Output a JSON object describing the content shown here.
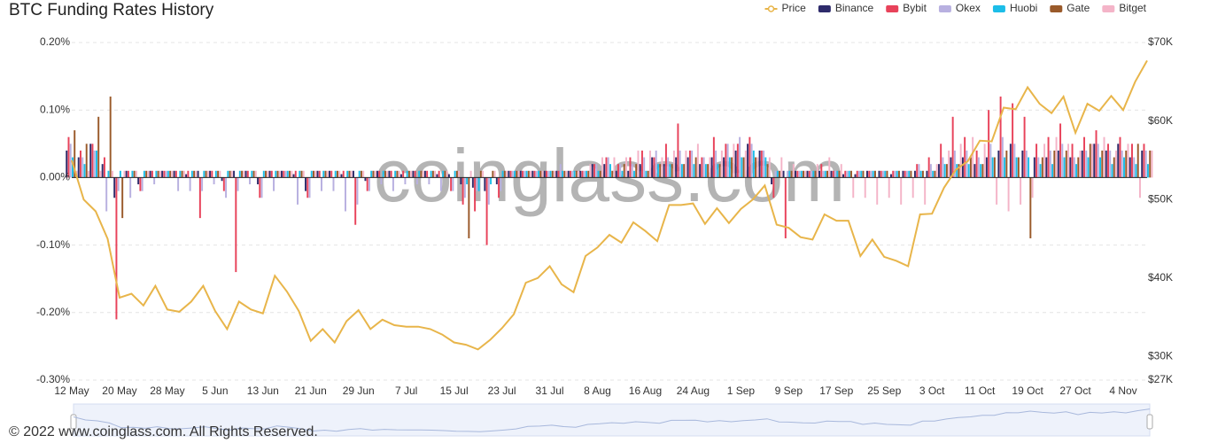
{
  "chart_data": {
    "type": "bar",
    "title": "BTC Funding Rates History",
    "watermark": "coinglass.com",
    "footer": "© 2022 www.coinglass.com. All Rights Reserved.",
    "grid": true,
    "legend": "top-right",
    "categories": [
      "12 May",
      null,
      null,
      null,
      "20 May",
      null,
      null,
      null,
      "28 May",
      null,
      null,
      null,
      "5 Jun",
      null,
      null,
      null,
      "13 Jun",
      null,
      null,
      null,
      "21 Jun",
      null,
      null,
      null,
      "29 Jun",
      null,
      null,
      null,
      "7 Jul",
      null,
      null,
      null,
      "15 Jul",
      null,
      null,
      null,
      "23 Jul",
      null,
      null,
      null,
      "31 Jul",
      null,
      null,
      null,
      "8 Aug",
      null,
      null,
      null,
      "16 Aug",
      null,
      null,
      null,
      "24 Aug",
      null,
      null,
      null,
      "1 Sep",
      null,
      null,
      null,
      "9 Sep",
      null,
      null,
      null,
      "17 Sep",
      null,
      null,
      null,
      "25 Sep",
      null,
      null,
      null,
      "3 Oct",
      null,
      null,
      null,
      "11 Oct",
      null,
      null,
      null,
      "19 Oct",
      null,
      null,
      null,
      "27 Oct",
      null,
      null,
      null,
      "4 Nov",
      null,
      null
    ],
    "ylim": [
      -0.3,
      0.2
    ],
    "yticks": [
      {
        "value": -0.3,
        "label": "-0.30%"
      },
      {
        "value": -0.2,
        "label": "-0.20%"
      },
      {
        "value": -0.1,
        "label": "-0.10%"
      },
      {
        "value": 0,
        "label": "0.00%"
      },
      {
        "value": 0.1,
        "label": "0.10%"
      },
      {
        "value": 0.2,
        "label": "0.20%"
      }
    ],
    "y2lim": [
      27000,
      70000
    ],
    "y2ticks": [
      {
        "value": 27000,
        "label": "$27K"
      },
      {
        "value": 30000,
        "label": "$30K"
      },
      {
        "value": 40000,
        "label": "$40K"
      },
      {
        "value": 50000,
        "label": "$50K"
      },
      {
        "value": 60000,
        "label": "$60K"
      },
      {
        "value": 70000,
        "label": "$70K"
      }
    ],
    "series": [
      {
        "name": "Price",
        "type": "line",
        "axis": "y2",
        "color": "#e8b54a",
        "values": [
          55000,
          50000,
          48500,
          45000,
          37500,
          38000,
          36500,
          39000,
          36000,
          35700,
          37000,
          39000,
          35800,
          33500,
          37000,
          36000,
          35500,
          40300,
          38300,
          35800,
          32000,
          33500,
          31800,
          34500,
          35900,
          33500,
          34700,
          34000,
          33800,
          33800,
          33500,
          32800,
          31800,
          31500,
          30900,
          32100,
          33600,
          35400,
          39400,
          40000,
          41500,
          39200,
          38200,
          42800,
          43900,
          45500,
          44500,
          47100,
          46000,
          44700,
          49300,
          49300,
          49500,
          46900,
          48900,
          47000,
          48800,
          50000,
          51800,
          46800,
          46400,
          45200,
          44900,
          48100,
          47300,
          47300,
          42800,
          44900,
          42700,
          42200,
          41500,
          48100,
          48200,
          51500,
          53800,
          54900,
          57500,
          57400,
          61700,
          61500,
          64300,
          62200,
          61000,
          63100,
          58500,
          62200,
          61300,
          63200,
          61400,
          65000,
          67700
        ]
      },
      {
        "name": "Binance",
        "type": "bar",
        "color": "#2e2b6b",
        "values": [
          0.04,
          0.03,
          0.05,
          0.02,
          -0.03,
          0.01,
          -0.01,
          0.01,
          0.01,
          0.01,
          0.005,
          0.01,
          0.01,
          -0.005,
          0.01,
          0.01,
          -0.01,
          0.01,
          0.01,
          0.005,
          -0.02,
          0.01,
          0.01,
          0.005,
          0.01,
          -0.005,
          0.01,
          0.01,
          0.005,
          0.01,
          0.01,
          0.005,
          0.005,
          -0.01,
          -0.015,
          -0.02,
          -0.01,
          0.01,
          0.01,
          0.01,
          0.01,
          0.01,
          0.01,
          0.01,
          0.02,
          0.02,
          0.01,
          0.01,
          0.02,
          0.03,
          0.02,
          0.03,
          0.03,
          0.02,
          0.03,
          0.03,
          0.04,
          0.05,
          0.04,
          -0.01,
          0.01,
          0.01,
          0.01,
          0.01,
          0.01,
          0.005,
          0.005,
          0.01,
          0.01,
          0.005,
          0.01,
          0.01,
          0.01,
          0.02,
          0.03,
          0.03,
          0.02,
          0.03,
          0.04,
          0.05,
          0.04,
          0.03,
          0.03,
          0.04,
          0.03,
          0.04,
          0.05,
          0.04,
          0.05,
          0.03,
          0.04
        ]
      },
      {
        "name": "Bybit",
        "type": "bar",
        "color": "#e8425a",
        "values": [
          0.06,
          0.04,
          0.05,
          0.03,
          -0.21,
          0.01,
          -0.02,
          0.01,
          0.01,
          0.01,
          0.01,
          -0.06,
          0.01,
          -0.02,
          -0.14,
          0.01,
          -0.03,
          0.01,
          0.01,
          0.01,
          -0.03,
          0.01,
          0.01,
          0.01,
          -0.07,
          -0.02,
          0.01,
          0.01,
          0.01,
          0.01,
          0.01,
          0.01,
          -0.02,
          -0.04,
          -0.05,
          -0.1,
          -0.03,
          0.01,
          0.01,
          0.01,
          0.01,
          0.01,
          0.01,
          0.01,
          0.02,
          0.03,
          0.02,
          0.03,
          0.04,
          0.03,
          0.05,
          0.08,
          0.04,
          0.03,
          0.06,
          0.05,
          0.05,
          0.06,
          0.04,
          -0.03,
          -0.09,
          0.01,
          0.01,
          0.02,
          0.01,
          0.01,
          0.01,
          0.01,
          0.01,
          0.01,
          0.01,
          0.02,
          0.03,
          0.05,
          0.09,
          0.06,
          0.04,
          0.1,
          0.12,
          0.11,
          0.09,
          0.05,
          0.06,
          0.08,
          0.05,
          0.06,
          0.07,
          0.05,
          0.06,
          0.05,
          0.05
        ]
      },
      {
        "name": "Okex",
        "type": "bar",
        "color": "#b8b0e0",
        "values": [
          0.05,
          0.03,
          0.04,
          -0.05,
          -0.02,
          -0.03,
          -0.02,
          -0.01,
          0.01,
          -0.02,
          -0.02,
          -0.02,
          -0.01,
          -0.03,
          -0.02,
          -0.01,
          -0.03,
          -0.02,
          0.01,
          -0.04,
          -0.03,
          -0.02,
          -0.02,
          -0.05,
          -0.04,
          -0.02,
          -0.01,
          -0.02,
          -0.01,
          -0.01,
          -0.01,
          -0.02,
          -0.02,
          -0.03,
          -0.02,
          -0.04,
          -0.02,
          0.01,
          0.01,
          0.01,
          0.01,
          0.02,
          0.01,
          0.01,
          0.02,
          0.03,
          0.02,
          0.02,
          0.03,
          0.04,
          0.03,
          0.04,
          0.04,
          0.03,
          0.04,
          0.05,
          0.06,
          0.05,
          0.04,
          0.01,
          0.01,
          0.01,
          0.01,
          0.01,
          0.01,
          0.01,
          0.01,
          0.01,
          0.01,
          0.01,
          0.01,
          0.02,
          0.02,
          0.03,
          0.04,
          0.04,
          0.03,
          0.05,
          0.06,
          0.05,
          0.04,
          0.03,
          0.04,
          0.05,
          0.03,
          0.04,
          0.05,
          0.04,
          0.04,
          0.03,
          0.04
        ]
      },
      {
        "name": "Huobi",
        "type": "bar",
        "color": "#1cbde8",
        "values": [
          0.03,
          0.02,
          0.04,
          0.01,
          0.01,
          0.01,
          0.01,
          0.01,
          0.01,
          0.01,
          0.01,
          0.01,
          0.01,
          0.01,
          0.01,
          0.01,
          0.01,
          0.01,
          0.01,
          0.01,
          0.01,
          0.01,
          0.01,
          0.01,
          0.01,
          0.01,
          0.01,
          0.01,
          0.01,
          0.01,
          0.01,
          0.01,
          0.01,
          -0.01,
          -0.02,
          -0.01,
          0.01,
          0.01,
          0.01,
          0.01,
          0.01,
          0.01,
          0.01,
          0.01,
          0.01,
          0.02,
          0.01,
          0.01,
          0.01,
          0.02,
          0.02,
          0.02,
          0.02,
          0.02,
          0.02,
          0.03,
          0.03,
          0.04,
          0.03,
          0.01,
          0.01,
          0.01,
          0.01,
          0.01,
          0.01,
          0.01,
          0.01,
          0.01,
          0.01,
          0.01,
          0.01,
          0.01,
          0.01,
          0.02,
          0.02,
          0.02,
          0.02,
          0.03,
          0.03,
          0.03,
          0.03,
          0.02,
          0.02,
          0.03,
          0.02,
          0.03,
          0.03,
          0.02,
          0.03,
          0.02,
          0.02
        ]
      },
      {
        "name": "Gate",
        "type": "bar",
        "color": "#9a5a2a",
        "values": [
          0.07,
          0.05,
          0.09,
          0.12,
          -0.06,
          0.01,
          0.01,
          0.01,
          0.01,
          0.01,
          0.01,
          0.01,
          0.01,
          0.01,
          0.01,
          0.01,
          0.01,
          0.01,
          0.01,
          0.01,
          0.01,
          0.01,
          0.01,
          0.01,
          0.01,
          0.01,
          0.01,
          0.01,
          0.01,
          0.01,
          0.01,
          0.01,
          0.01,
          -0.09,
          0.01,
          0.01,
          0.01,
          0.01,
          0.01,
          0.01,
          0.01,
          0.01,
          0.01,
          0.01,
          0.01,
          0.01,
          0.02,
          0.02,
          0.01,
          0.02,
          0.02,
          0.02,
          0.03,
          0.02,
          0.02,
          0.03,
          0.03,
          0.03,
          0.02,
          0.01,
          0.01,
          0.01,
          0.01,
          0.01,
          0.01,
          0.01,
          0.01,
          0.01,
          0.01,
          0.01,
          0.01,
          0.01,
          0.01,
          0.02,
          0.02,
          0.03,
          0.02,
          0.03,
          0.04,
          0.03,
          -0.09,
          0.03,
          0.04,
          0.04,
          0.03,
          0.05,
          0.04,
          0.03,
          0.04,
          0.05,
          0.04
        ]
      },
      {
        "name": "Bitget",
        "type": "bar",
        "color": "#f4b4c8",
        "values": [
          0.01,
          0.01,
          0.01,
          0.01,
          0.01,
          0.01,
          0.01,
          0.01,
          0.01,
          0.01,
          0.01,
          0.01,
          0.01,
          0.01,
          0.01,
          0.01,
          0.01,
          0.01,
          0.01,
          0.01,
          0.01,
          0.01,
          0.01,
          0.01,
          0.01,
          0.01,
          0.01,
          0.01,
          0.01,
          0.01,
          0.01,
          0.01,
          0.01,
          0.01,
          0.01,
          0.01,
          0.01,
          0.01,
          0.01,
          0.01,
          0.01,
          0.01,
          0.01,
          0.02,
          0.03,
          0.03,
          0.03,
          0.04,
          0.04,
          0.03,
          0.04,
          0.04,
          0.05,
          0.03,
          0.04,
          0.05,
          0.04,
          0.03,
          0.03,
          0.03,
          0.02,
          0.01,
          0.02,
          0.03,
          0.02,
          -0.03,
          -0.03,
          -0.04,
          -0.03,
          -0.04,
          -0.03,
          -0.04,
          0.02,
          0.04,
          0.05,
          0.06,
          0.05,
          -0.04,
          -0.05,
          -0.04,
          -0.03,
          0.05,
          0.06,
          0.05,
          0.04,
          0.05,
          0.06,
          0.04,
          0.05,
          -0.03,
          0.04
        ]
      }
    ]
  }
}
